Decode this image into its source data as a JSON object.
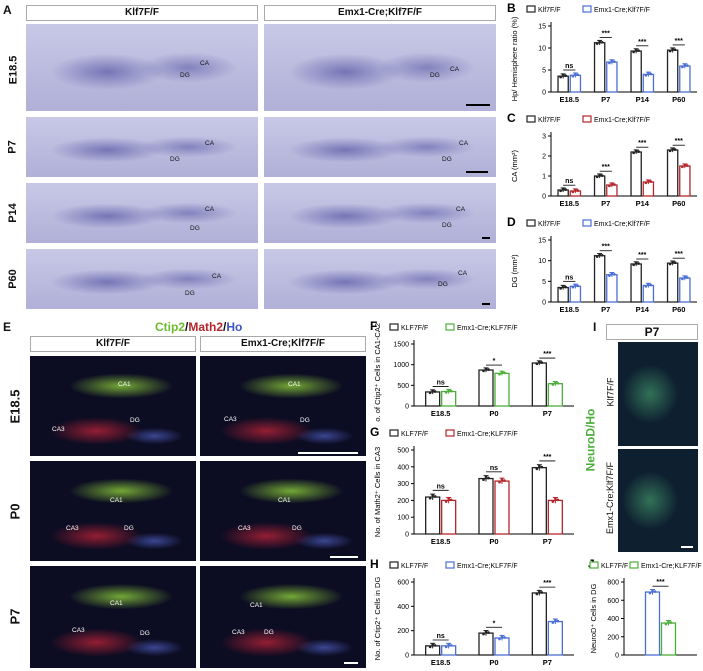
{
  "panels": {
    "A": {
      "label": "A",
      "col_headers": [
        "Klf7F/F",
        "Emx1-Cre;Klf7F/F"
      ],
      "rows": [
        "E18.5",
        "P7",
        "P14",
        "P60"
      ],
      "regions": [
        "CA",
        "DG"
      ]
    },
    "E": {
      "label": "E",
      "stain_title": {
        "ctip2": "Ctip2",
        "sep1": "/",
        "math2": "Math2",
        "sep2": "/",
        "ho": "Ho"
      },
      "col_headers": [
        "Klf7F/F",
        "Emx1-Cre;Klf7F/F"
      ],
      "rows": [
        "E18.5",
        "P0",
        "P7"
      ],
      "regions": {
        "ca1": "CA1",
        "ca3": "CA3",
        "dg": "DG"
      }
    },
    "I": {
      "label": "I",
      "time": "P7",
      "stain": "NeuroD/Ho",
      "rows": [
        "Klf7F/F",
        "Emx1-Cre;Klf7F/F"
      ]
    }
  },
  "colors": {
    "wt": "#222222",
    "ko_blue": "#4a6fd6",
    "ko_red": "#b3262a",
    "ko_green": "#4caf3a",
    "ctip2": "#6dbb2f",
    "math2": "#b3262a",
    "ho": "#3b55c4"
  },
  "chart_data": [
    {
      "id": "B",
      "label": "B",
      "type": "bar",
      "categories": [
        "E18.5",
        "P7",
        "P14",
        "P60"
      ],
      "ylabel": "Hp/ Hemisphere ratio (%)",
      "ylim": [
        0,
        15
      ],
      "yticks": [
        0,
        5,
        10,
        15
      ],
      "legend": [
        "Klf7F/F",
        "Emx1-Cre;Klf7F/F"
      ],
      "ko_color": "blue",
      "series": [
        {
          "name": "Klf7F/F",
          "values": [
            3.6,
            11.2,
            9.3,
            9.5
          ]
        },
        {
          "name": "Emx1-Cre;Klf7F/F",
          "values": [
            3.8,
            6.8,
            4.0,
            5.9
          ]
        }
      ],
      "sig": [
        "ns",
        "***",
        "***",
        "***"
      ]
    },
    {
      "id": "C",
      "label": "C",
      "type": "bar",
      "categories": [
        "E18.5",
        "P7",
        "P14",
        "P60"
      ],
      "ylabel": "CA (mm²)",
      "ylim": [
        0,
        3
      ],
      "yticks": [
        0,
        1,
        2,
        3
      ],
      "legend": [
        "Klf7F/F",
        "Emx1-Cre;Klf7F/F"
      ],
      "ko_color": "red",
      "series": [
        {
          "name": "Klf7F/F",
          "values": [
            0.3,
            1.0,
            2.2,
            2.3
          ]
        },
        {
          "name": "Emx1-Cre;Klf7F/F",
          "values": [
            0.25,
            0.55,
            0.7,
            1.5
          ]
        }
      ],
      "sig": [
        "ns",
        "***",
        "***",
        "***"
      ]
    },
    {
      "id": "D",
      "label": "D",
      "type": "bar",
      "categories": [
        "E18.5",
        "P7",
        "P14",
        "P60"
      ],
      "ylabel": "DG (mm²)",
      "ylim": [
        0,
        15
      ],
      "yticks": [
        0,
        5,
        10,
        15
      ],
      "legend": [
        "Klf7F/F",
        "Emx1-Cre;Klf7F/F"
      ],
      "ko_color": "blue",
      "series": [
        {
          "name": "Klf7F/F",
          "values": [
            3.5,
            11.2,
            9.2,
            9.4
          ]
        },
        {
          "name": "Emx1-Cre;Klf7F/F",
          "values": [
            3.8,
            6.6,
            4.0,
            5.8
          ]
        }
      ],
      "sig": [
        "ns",
        "***",
        "***",
        "***"
      ]
    },
    {
      "id": "F",
      "label": "F",
      "type": "bar",
      "categories": [
        "E18.5",
        "P0",
        "P7"
      ],
      "ylabel": "No. of Ctip2⁺ Cells in CA1-CA2",
      "ylim": [
        0,
        1500
      ],
      "yticks": [
        0,
        500,
        1000,
        1500
      ],
      "legend": [
        "KLF7F/F",
        "Emx1-Cre;KLF7F/F"
      ],
      "ko_color": "green",
      "series": [
        {
          "name": "KLF7F/F",
          "values": [
            340,
            870,
            1040
          ]
        },
        {
          "name": "Emx1-Cre;KLF7F/F",
          "values": [
            350,
            790,
            540
          ]
        }
      ],
      "sig": [
        "ns",
        "*",
        "***"
      ]
    },
    {
      "id": "G",
      "label": "G",
      "type": "bar",
      "categories": [
        "E18.5",
        "P0",
        "P7"
      ],
      "ylabel": "No. of Math2⁺ Cells in CA3",
      "ylim": [
        0,
        500
      ],
      "yticks": [
        0,
        100,
        200,
        300,
        400,
        500
      ],
      "legend": [
        "KLF7F/F",
        "Emx1-Cre;KLF7F/F"
      ],
      "ko_color": "red",
      "series": [
        {
          "name": "KLF7F/F",
          "values": [
            220,
            330,
            395
          ]
        },
        {
          "name": "Emx1-Cre;KLF7F/F",
          "values": [
            200,
            315,
            200
          ]
        }
      ],
      "sig": [
        "ns",
        "ns",
        "***"
      ]
    },
    {
      "id": "H",
      "label": "H",
      "type": "bar",
      "categories": [
        "E18.5",
        "P0",
        "P7"
      ],
      "ylabel": "No. of Ctip2⁺ Cells in DG",
      "ylim": [
        0,
        600
      ],
      "yticks": [
        0,
        200,
        400,
        600
      ],
      "legend": [
        "KLF7F/F",
        "Emx1-Cre;KLF7F/F"
      ],
      "ko_color": "blue",
      "series": [
        {
          "name": "KLF7F/F",
          "values": [
            75,
            180,
            510
          ]
        },
        {
          "name": "Emx1-Cre;KLF7F/F",
          "values": [
            75,
            140,
            275
          ]
        }
      ],
      "sig": [
        "ns",
        "*",
        "***"
      ]
    },
    {
      "id": "J",
      "label": "J",
      "type": "bar",
      "categories": [
        ""
      ],
      "ylabel": "NeuroD⁺ Cells in DG",
      "ylim": [
        0,
        800
      ],
      "yticks": [
        0,
        200,
        400,
        600,
        800
      ],
      "legend": [
        "KLF7F/F",
        "Emx1-Cre;KLF7F/F"
      ],
      "ko_color": "green",
      "series": [
        {
          "name": "KLF7F/F",
          "values": [
            690
          ]
        },
        {
          "name": "Emx1-Cre;KLF7F/F",
          "values": [
            350
          ]
        }
      ],
      "sig": [
        "***"
      ]
    }
  ]
}
